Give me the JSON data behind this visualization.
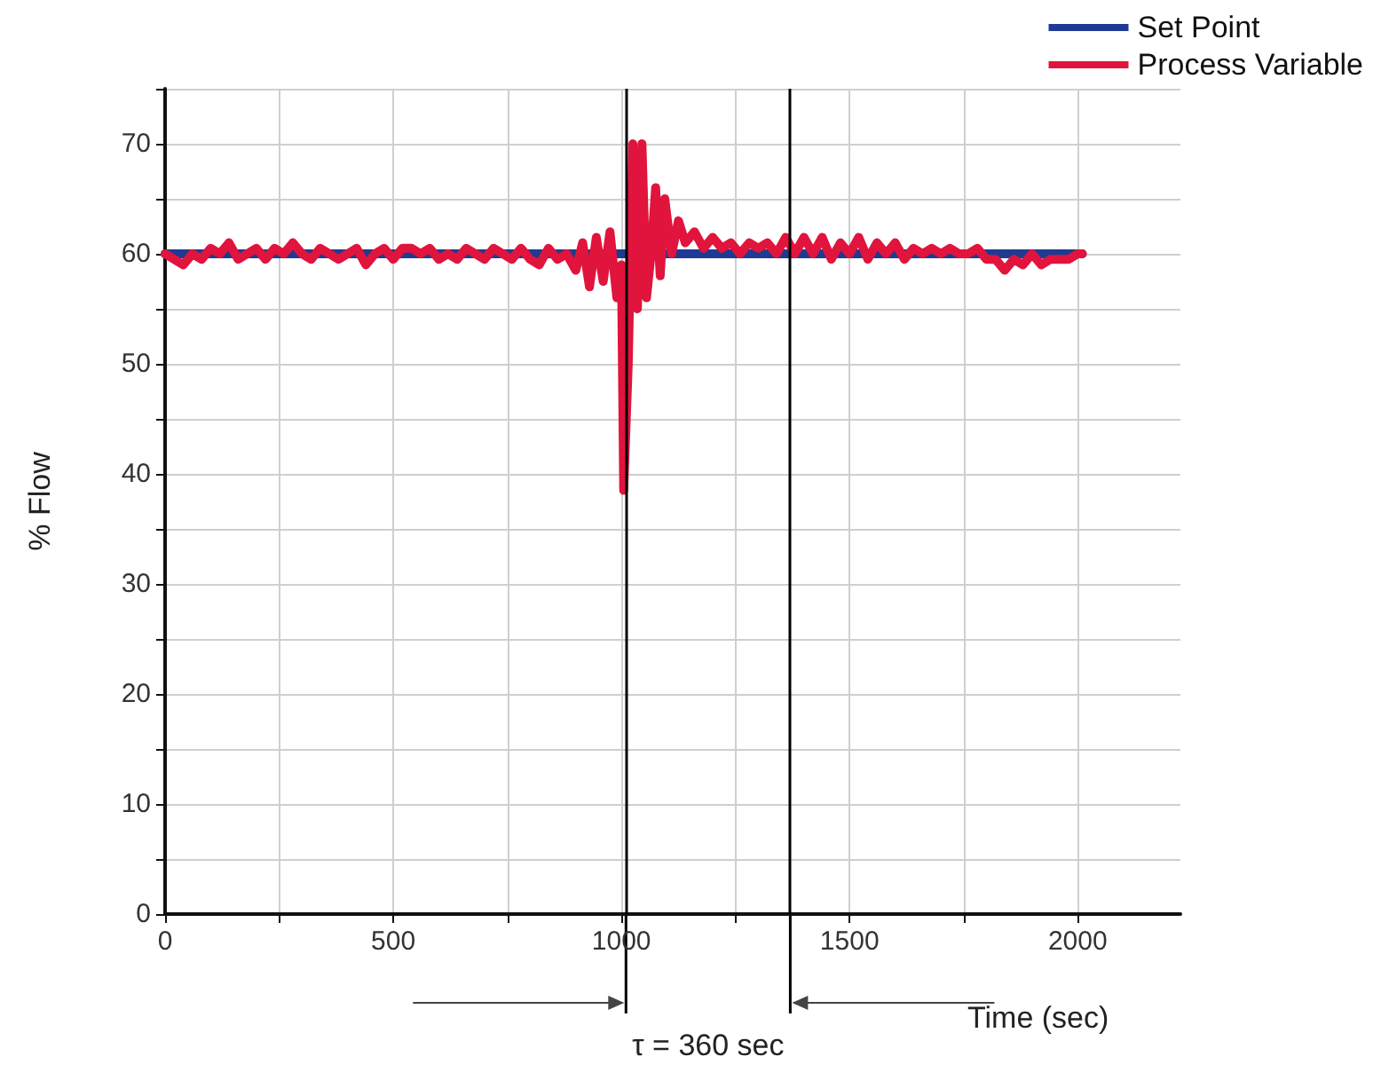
{
  "chart_data": {
    "type": "line",
    "xlabel": "Time (sec)",
    "ylabel": "% Flow",
    "xlim": [
      0,
      2225
    ],
    "xticks": [
      0,
      500,
      1000,
      1500,
      2000
    ],
    "ylim": [
      0,
      75
    ],
    "yticks": [
      0,
      10,
      20,
      30,
      40,
      50,
      60,
      70
    ],
    "grid": true,
    "legend": "top right",
    "marker": "none",
    "line_style": "solid",
    "annotations": [
      "τ = 360 sec"
    ],
    "ref_lines": [
      {
        "axis": "x",
        "value": 1010,
        "label": null,
        "color": "#000000"
      },
      {
        "axis": "x",
        "value": 1370,
        "label": null,
        "color": "#000000"
      }
    ],
    "series": [
      {
        "name": "Set Point",
        "color": "#1f3a93",
        "x": [
          0,
          2010
        ],
        "values": [
          60,
          60
        ]
      },
      {
        "name": "Process Variable",
        "color": "#e0143c",
        "x": [
          0,
          20,
          40,
          60,
          80,
          100,
          120,
          140,
          160,
          180,
          200,
          220,
          240,
          260,
          280,
          300,
          320,
          340,
          360,
          380,
          400,
          420,
          440,
          460,
          480,
          500,
          520,
          540,
          560,
          580,
          600,
          620,
          640,
          660,
          680,
          700,
          720,
          740,
          760,
          780,
          800,
          820,
          840,
          860,
          880,
          900,
          915,
          930,
          945,
          960,
          975,
          990,
          1000,
          1005,
          1015,
          1025,
          1035,
          1045,
          1055,
          1065,
          1075,
          1085,
          1095,
          1110,
          1125,
          1140,
          1160,
          1180,
          1200,
          1220,
          1240,
          1260,
          1280,
          1300,
          1320,
          1340,
          1360,
          1380,
          1400,
          1420,
          1440,
          1460,
          1480,
          1500,
          1520,
          1540,
          1560,
          1580,
          1600,
          1620,
          1640,
          1660,
          1680,
          1700,
          1720,
          1740,
          1760,
          1780,
          1800,
          1820,
          1840,
          1860,
          1880,
          1900,
          1920,
          1940,
          1960,
          1980,
          2000,
          2010
        ],
        "values": [
          60,
          59.5,
          59,
          60,
          59.5,
          60.5,
          60,
          61,
          59.5,
          60,
          60.5,
          59.5,
          60.5,
          60,
          61,
          60,
          59.5,
          60.5,
          60,
          59.5,
          60,
          60.5,
          59,
          60,
          60.5,
          59.5,
          60.5,
          60.5,
          60,
          60.5,
          59.5,
          60,
          59.5,
          60.5,
          60,
          59.5,
          60.5,
          60,
          59.5,
          60.5,
          59.5,
          59,
          60.5,
          59.5,
          60,
          58.5,
          61,
          57,
          61.5,
          57.5,
          62,
          56,
          59,
          38.5,
          50,
          70,
          55,
          70,
          56,
          60,
          66,
          58,
          65,
          60,
          63,
          61,
          62,
          60.5,
          61.5,
          60.5,
          61,
          60,
          61,
          60.5,
          61,
          60,
          61.5,
          60,
          61.5,
          60,
          61.5,
          59.5,
          61,
          60,
          61.5,
          59.5,
          61,
          60,
          61,
          59.5,
          60.5,
          60,
          60.5,
          60,
          60.5,
          60,
          60,
          60.5,
          59.5,
          59.5,
          58.5,
          59.5,
          59,
          60,
          59,
          59.5,
          59.5,
          59.5,
          60,
          60
        ]
      }
    ]
  }
}
